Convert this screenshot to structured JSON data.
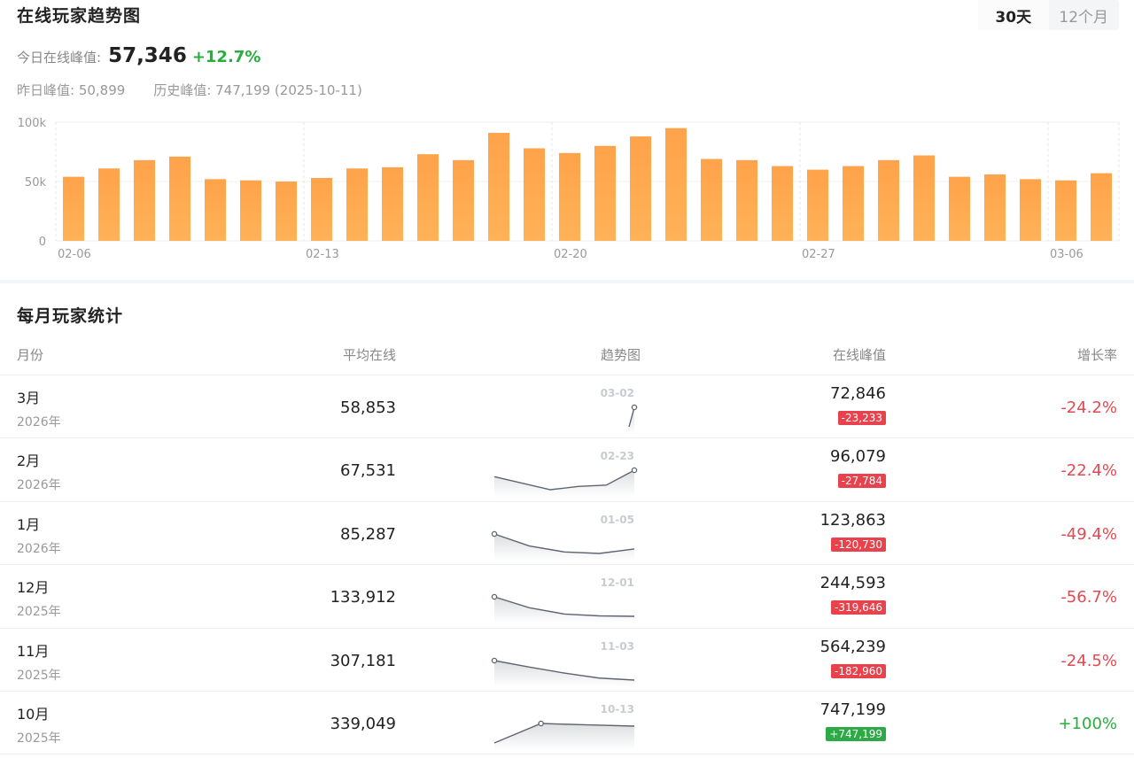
{
  "header": {
    "title": "在线玩家趋势图",
    "tabs": [
      {
        "label": "30天",
        "active": true
      },
      {
        "label": "12个月",
        "active": false
      }
    ]
  },
  "summary": {
    "today_label": "今日在线峰值:",
    "today_value": "57,346",
    "today_change": "+12.7%",
    "yesterday": "昨日峰值: 50,899",
    "historic": "历史峰值: 747,199 (2025-10-11)"
  },
  "chart_data": {
    "type": "bar",
    "categories": [
      "02-06",
      "02-07",
      "02-08",
      "02-09",
      "02-10",
      "02-11",
      "02-12",
      "02-13",
      "02-14",
      "02-15",
      "02-16",
      "02-17",
      "02-18",
      "02-19",
      "02-20",
      "02-21",
      "02-22",
      "02-23",
      "02-24",
      "02-25",
      "02-26",
      "02-27",
      "02-28",
      "03-01",
      "03-02",
      "03-03",
      "03-04",
      "03-05",
      "03-06",
      "03-07"
    ],
    "values": [
      54000,
      61000,
      68000,
      71000,
      52000,
      51000,
      50000,
      53000,
      61000,
      62000,
      73000,
      68000,
      91000,
      78000,
      74000,
      80000,
      88000,
      95000,
      69000,
      68000,
      63000,
      60000,
      63000,
      68000,
      72000,
      54000,
      56000,
      52000,
      51000,
      57000
    ],
    "x_tick_labels": [
      "02-06",
      "02-13",
      "02-20",
      "02-27",
      "03-06"
    ],
    "y_tick_labels": [
      "0",
      "50k",
      "100k"
    ],
    "ylim": [
      0,
      100000
    ],
    "colors": {
      "bar_top": "#ffa34a",
      "bar_bottom": "#ffb258"
    }
  },
  "monthly": {
    "title": "每月玩家统计",
    "columns": {
      "month": "月份",
      "avg": "平均在线",
      "trend": "趋势图",
      "peak": "在线峰值",
      "growth": "增长率"
    },
    "rows": [
      {
        "month": "3月",
        "year": "2026年",
        "avg": "58,853",
        "peak": "72,846",
        "diff": "-23,233",
        "diff_positive": false,
        "growth": "-24.2%",
        "growth_positive": false,
        "spark_label": "03-02",
        "spark": [
          70,
          72
        ]
      },
      {
        "month": "2月",
        "year": "2026年",
        "avg": "67,531",
        "peak": "96,079",
        "diff": "-27,784",
        "diff_positive": false,
        "growth": "-22.4%",
        "growth_positive": false,
        "spark_label": "02-23",
        "spark": [
          66,
          65,
          64,
          64.5,
          64.7,
          67
        ]
      },
      {
        "month": "1月",
        "year": "2026年",
        "avg": "85,287",
        "peak": "123,863",
        "diff": "-120,730",
        "diff_positive": false,
        "growth": "-49.4%",
        "growth_positive": false,
        "spark_label": "01-05",
        "spark": [
          90,
          86,
          84,
          83.5,
          85
        ]
      },
      {
        "month": "12月",
        "year": "2025年",
        "avg": "133,912",
        "peak": "244,593",
        "diff": "-319,646",
        "diff_positive": false,
        "growth": "-56.7%",
        "growth_positive": false,
        "spark_label": "12-01",
        "spark": [
          150,
          138,
          131,
          129,
          128.5
        ]
      },
      {
        "month": "11月",
        "year": "2025年",
        "avg": "307,181",
        "peak": "564,239",
        "diff": "-182,960",
        "diff_positive": false,
        "growth": "-24.5%",
        "growth_positive": false,
        "spark_label": "11-03",
        "spark": [
          330,
          317,
          305,
          295,
          291
        ]
      },
      {
        "month": "10月",
        "year": "2025年",
        "avg": "339,049",
        "peak": "747,199",
        "diff": "+747,199",
        "diff_positive": true,
        "growth": "+100%",
        "growth_positive": true,
        "spark_label": "10-13",
        "spark": [
          250,
          360,
          352,
          345
        ]
      }
    ]
  }
}
